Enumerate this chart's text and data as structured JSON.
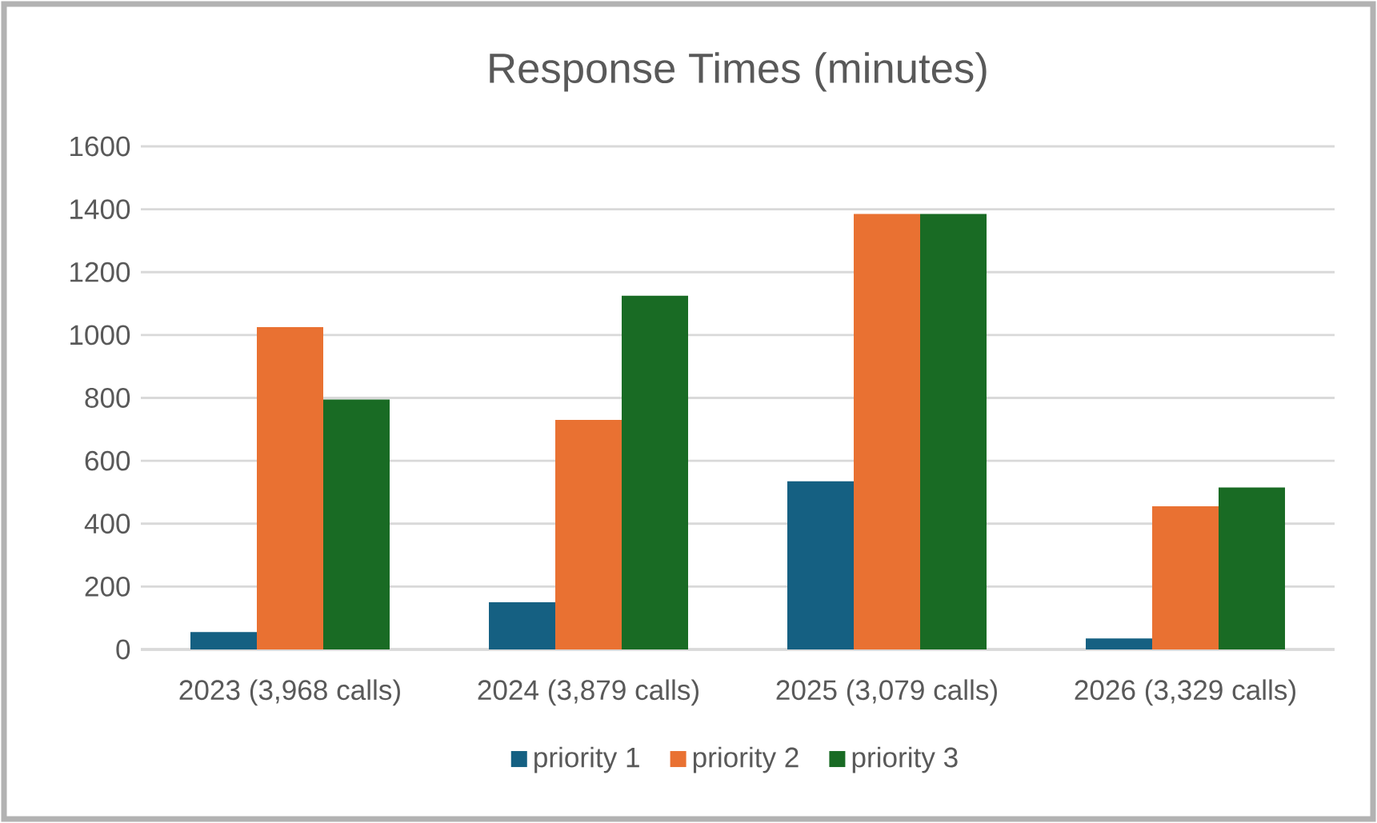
{
  "chart_data": {
    "type": "bar",
    "title": "Response Times (minutes)",
    "categories": [
      "2023  (3,968 calls)",
      "2024  (3,879 calls)",
      "2025  (3,079 calls)",
      "2026  (3,329 calls)"
    ],
    "series": [
      {
        "name": "priority 1",
        "color": "#156082",
        "values": [
          55,
          150,
          535,
          35
        ]
      },
      {
        "name": "priority 2",
        "color": "#e97132",
        "values": [
          1025,
          730,
          1385,
          455
        ]
      },
      {
        "name": "priority 3",
        "color": "#196b24",
        "values": [
          795,
          1125,
          1385,
          515
        ]
      }
    ],
    "ylim": [
      0,
      1600
    ],
    "yticks": [
      0,
      200,
      400,
      600,
      800,
      1000,
      1200,
      1400,
      1600
    ],
    "grid": "y",
    "legend": "bottom"
  }
}
